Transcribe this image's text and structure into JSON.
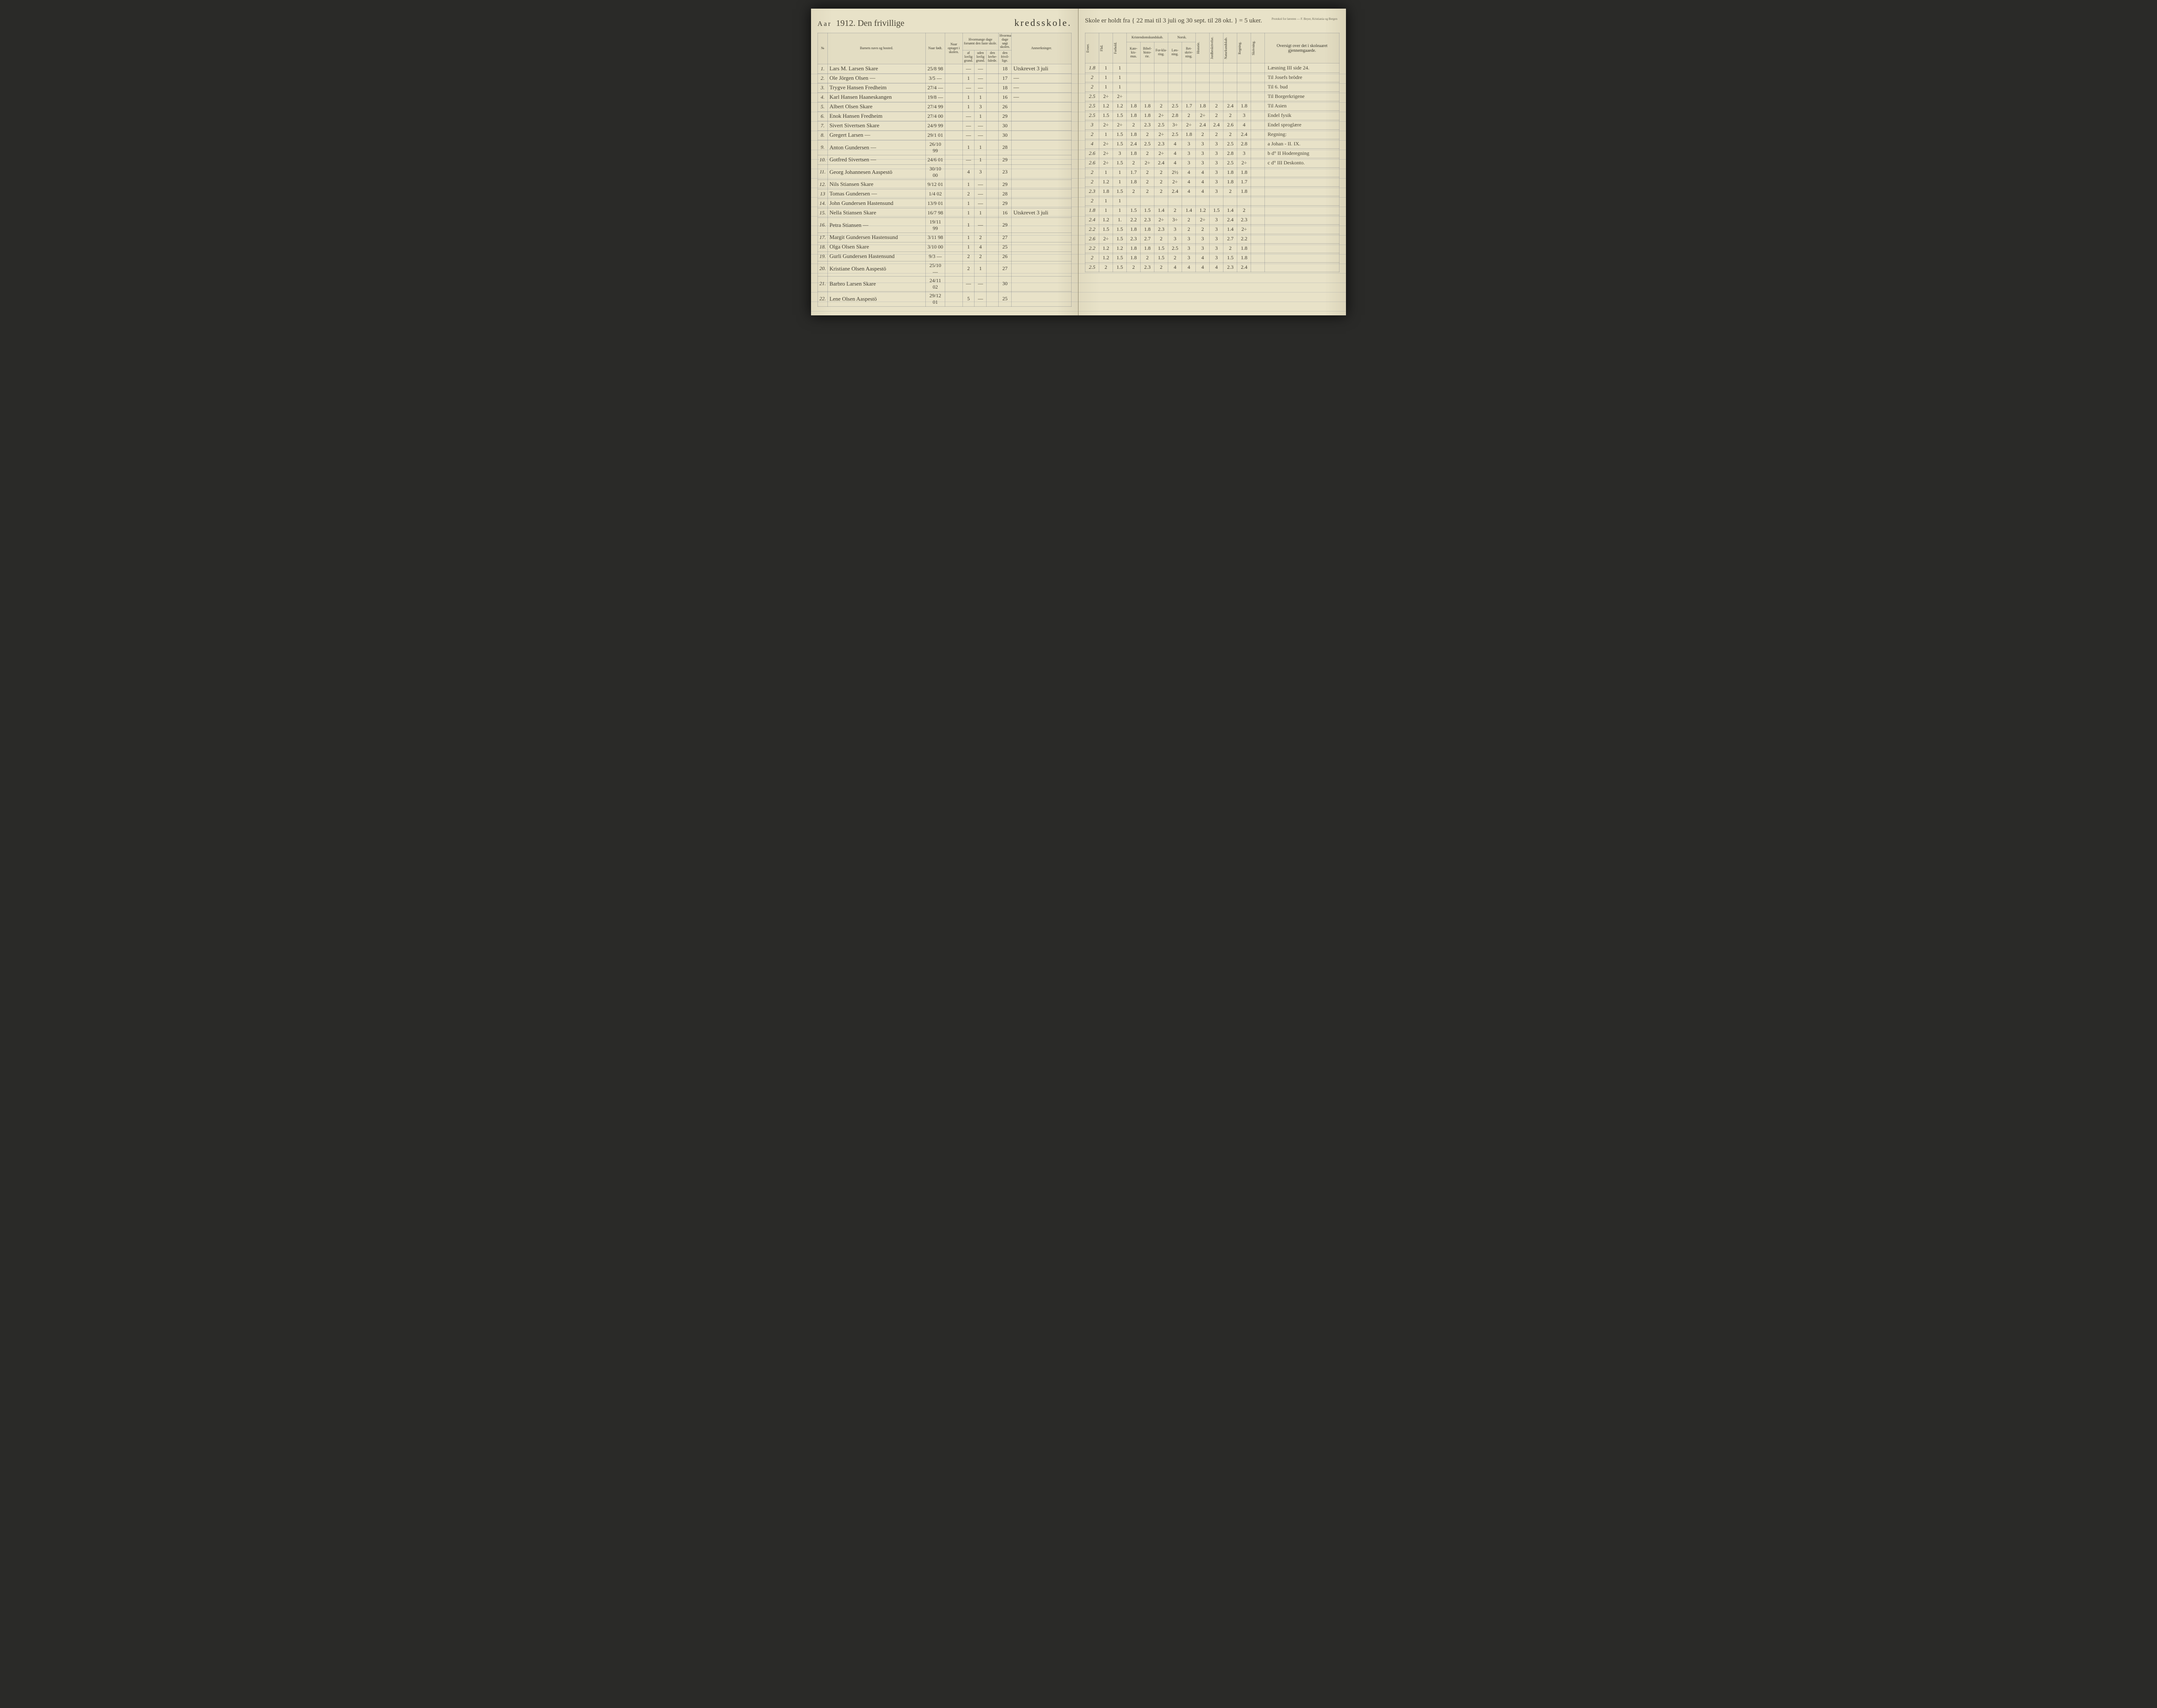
{
  "colors": {
    "paper": "#e8e2c8",
    "ink": "#4a4638",
    "rule": "#788296",
    "printed": "#3a382e"
  },
  "left": {
    "aar_label": "Aar",
    "year_hand": "1912. Den frivillige",
    "title_print": "kredsskole.",
    "headers": {
      "no": "№",
      "navn": "Barnets navn og bosted.",
      "fodt": "Naar født.",
      "optaget": "Naar optaget i skolen.",
      "forsomt_top": "Hvormange dage forsømt den faste skole.",
      "forsomt_a": "af lovlig grund.",
      "forsomt_b": "uden lovlig grund.",
      "forsomt_c": "den lovbe-falede.",
      "sogt_top": "Hvormange dage søgt skolen.",
      "sogt_a": "den frivil-lige.",
      "anm": "Anmerkninger."
    },
    "rows": [
      {
        "no": "1.",
        "name": "Lars M. Larsen Skare",
        "fodt": "25/8 98",
        "opt": "",
        "a": "—",
        "b": "—",
        "c": "",
        "d": "18",
        "anm": "Utskrevet 3 juli"
      },
      {
        "no": "2.",
        "name": "Ole Jörgen Olsen —",
        "fodt": "3/5 —",
        "opt": "",
        "a": "1",
        "b": "—",
        "c": "",
        "d": "17",
        "anm": "—"
      },
      {
        "no": "3.",
        "name": "Trygve Hansen Fredheim",
        "fodt": "27/4 —",
        "opt": "",
        "a": "—",
        "b": "—",
        "c": "",
        "d": "18",
        "anm": "—"
      },
      {
        "no": "4.",
        "name": "Karl Hansen Haaneskangen",
        "fodt": "19/8 —",
        "opt": "",
        "a": "1",
        "b": "1",
        "c": "",
        "d": "16",
        "anm": "—"
      },
      {
        "no": "5.",
        "name": "Albert Olsen Skare",
        "fodt": "27/4 99",
        "opt": "",
        "a": "1",
        "b": "3",
        "c": "",
        "d": "26",
        "anm": ""
      },
      {
        "no": "6.",
        "name": "Enok Hansen Fredheim",
        "fodt": "27/4 00",
        "opt": "",
        "a": "—",
        "b": "1",
        "c": "",
        "d": "29",
        "anm": ""
      },
      {
        "no": "7.",
        "name": "Sivert Sivertsen Skare",
        "fodt": "24/9 99",
        "opt": "",
        "a": "—",
        "b": "—",
        "c": "",
        "d": "30",
        "anm": ""
      },
      {
        "no": "8.",
        "name": "Gregert Larsen   —",
        "fodt": "29/1 01",
        "opt": "",
        "a": "—",
        "b": "—",
        "c": "",
        "d": "30",
        "anm": ""
      },
      {
        "no": "9.",
        "name": "Anton Gundersen  —",
        "fodt": "26/10 99",
        "opt": "",
        "a": "1",
        "b": "1",
        "c": "",
        "d": "28",
        "anm": ""
      },
      {
        "no": "10.",
        "name": "Gotfred Sivertsen —",
        "fodt": "24/6 01",
        "opt": "",
        "a": "—",
        "b": "1",
        "c": "",
        "d": "29",
        "anm": ""
      },
      {
        "no": "11.",
        "name": "Georg Johannesen Aaspestö",
        "fodt": "30/10 00",
        "opt": "",
        "a": "4",
        "b": "3",
        "c": "",
        "d": "23",
        "anm": ""
      },
      {
        "no": "12.",
        "name": "Nils Stiansen Skare",
        "fodt": "9/12 01",
        "opt": "",
        "a": "1",
        "b": "—",
        "c": "",
        "d": "29",
        "anm": ""
      },
      {
        "no": "13",
        "name": "Tomas Gundersen  —",
        "fodt": "1/4 02",
        "opt": "",
        "a": "2",
        "b": "—",
        "c": "",
        "d": "28",
        "anm": ""
      },
      {
        "no": "14.",
        "name": "John Gundersen Hastensund",
        "fodt": "13/9 01",
        "opt": "",
        "a": "1",
        "b": "—",
        "c": "",
        "d": "29",
        "anm": ""
      },
      {
        "no": "15.",
        "name": "Nella Stiansen Skare",
        "fodt": "16/7 98",
        "opt": "",
        "a": "1",
        "b": "1",
        "c": "",
        "d": "16",
        "anm": "Utskrevet 3 juli"
      },
      {
        "no": "16.",
        "name": "Petra Stiansen   —",
        "fodt": "19/11 99",
        "opt": "",
        "a": "1",
        "b": "—",
        "c": "",
        "d": "29",
        "anm": ""
      },
      {
        "no": "17.",
        "name": "Margit Gundersen Hastensund",
        "fodt": "3/11 98",
        "opt": "",
        "a": "1",
        "b": "2",
        "c": "",
        "d": "27",
        "anm": ""
      },
      {
        "no": "18.",
        "name": "Olga Olsen Skare",
        "fodt": "3/10 00",
        "opt": "",
        "a": "1",
        "b": "4",
        "c": "",
        "d": "25",
        "anm": ""
      },
      {
        "no": "19.",
        "name": "Gurli Gundersen Hastensund",
        "fodt": "9/3 —",
        "opt": "",
        "a": "2",
        "b": "2",
        "c": "",
        "d": "26",
        "anm": ""
      },
      {
        "no": "20.",
        "name": "Kristiane Olsen Aaspestö",
        "fodt": "25/10 —",
        "opt": "",
        "a": "2",
        "b": "1",
        "c": "",
        "d": "27",
        "anm": ""
      },
      {
        "no": "21.",
        "name": "Barbro Larsen Skare",
        "fodt": "24/11 02",
        "opt": "",
        "a": "—",
        "b": "—",
        "c": "",
        "d": "30",
        "anm": ""
      },
      {
        "no": "22.",
        "name": "Lene Olsen Aaspestö",
        "fodt": "29/12 01",
        "opt": "",
        "a": "5",
        "b": "—",
        "c": "",
        "d": "25",
        "anm": ""
      }
    ]
  },
  "right": {
    "hand_note": "Skole er holdt fra { 22 mai til 3 juli og 30 sept. til 28 okt. } = 5 uker.",
    "publisher": "Protokol for læreren — F. Beyer, Kristiania og Bergen",
    "headers": {
      "evner": "Evner.",
      "flid": "Flid.",
      "forhold": "Forhold.",
      "krist_top": "Kristendomskundskab.",
      "krist_a": "Kate-kis-mus.",
      "krist_b": "Bibel-histo-rie.",
      "krist_c": "For-kla-ring.",
      "norsk_top": "Norsk.",
      "norsk_a": "Læs-ning.",
      "norsk_b": "Ret-skriv-ning.",
      "historie": "Historie.",
      "jord": "Jordbeskrivelse.",
      "natur": "Naturkundskab.",
      "regning": "Regning.",
      "skrivning": "Skrivning.",
      "oversigt": "Oversigt over det i skoleaaret gjennemgaaede."
    },
    "rows": [
      {
        "g": [
          "1.8",
          "1",
          "1",
          "",
          "",
          "",
          "",
          "",
          "",
          "",
          "",
          "",
          ""
        ],
        "ov": "Læsning III side 24."
      },
      {
        "g": [
          "2",
          "1",
          "1",
          "",
          "",
          "",
          "",
          "",
          "",
          "",
          "",
          "",
          ""
        ],
        "ov": "Til Josefs brödre"
      },
      {
        "g": [
          "2",
          "1",
          "1",
          "",
          "",
          "",
          "",
          "",
          "",
          "",
          "",
          "",
          ""
        ],
        "ov": "Til 6. bud"
      },
      {
        "g": [
          "2.5",
          "2÷",
          "2÷",
          "",
          "",
          "",
          "",
          "",
          "",
          "",
          "",
          "",
          ""
        ],
        "ov": "Til Borgerkrigene"
      },
      {
        "g": [
          "2.5",
          "1.2",
          "1.2",
          "1.8",
          "1.8",
          "2",
          "2.5",
          "1.7",
          "1.8",
          "2",
          "2.4",
          "1.8",
          ""
        ],
        "ov": "Til Asien"
      },
      {
        "g": [
          "2.5",
          "1.5",
          "1.5",
          "1.8",
          "1.8",
          "2÷",
          "2.8",
          "2",
          "2÷",
          "2",
          "2",
          "3",
          ""
        ],
        "ov": "Endel fysik"
      },
      {
        "g": [
          "3",
          "2÷",
          "2÷",
          "2",
          "2.3",
          "2.5",
          "3÷",
          "2÷",
          "2.4",
          "2.4",
          "2.6",
          "4",
          ""
        ],
        "ov": "Endel sproglære"
      },
      {
        "g": [
          "2",
          "1",
          "1.5",
          "1.8",
          "2",
          "2÷",
          "2.5",
          "1.8",
          "2",
          "2",
          "2",
          "2.4",
          ""
        ],
        "ov": "Regning:"
      },
      {
        "g": [
          "4",
          "2÷",
          "1.5",
          "2.4",
          "2.5",
          "2.3",
          "4",
          "3",
          "3",
          "3",
          "2.5",
          "2.8",
          ""
        ],
        "ov": "a Johan - II.  IX."
      },
      {
        "g": [
          "2.6",
          "2÷",
          "3",
          "1.8",
          "2",
          "2÷",
          "4",
          "3",
          "3",
          "3",
          "2.8",
          "3",
          ""
        ],
        "ov": "b d° II Hoderegning"
      },
      {
        "g": [
          "2.6",
          "2÷",
          "1.5",
          "2",
          "2÷",
          "2.4",
          "4",
          "3",
          "3",
          "3",
          "2.5",
          "2÷",
          ""
        ],
        "ov": "c d° III Deskonto."
      },
      {
        "g": [
          "2",
          "1",
          "1",
          "1.7",
          "2",
          "2",
          "2½",
          "4",
          "4",
          "3",
          "1.8",
          "1.8",
          ""
        ],
        "ov": ""
      },
      {
        "g": [
          "2",
          "1.2",
          "1",
          "1.8",
          "2",
          "2",
          "2÷",
          "4",
          "4",
          "3",
          "1.8",
          "1.7",
          ""
        ],
        "ov": ""
      },
      {
        "g": [
          "2.3",
          "1.8",
          "1.5",
          "2",
          "2",
          "2",
          "2.4",
          "4",
          "4",
          "3",
          "2",
          "1.8",
          ""
        ],
        "ov": ""
      },
      {
        "g": [
          "2",
          "1",
          "1",
          "",
          "",
          "",
          "",
          "",
          "",
          "",
          "",
          "",
          ""
        ],
        "ov": ""
      },
      {
        "g": [
          "1.8",
          "1",
          "1",
          "1.5",
          "1.5",
          "1.4",
          "2",
          "1.4",
          "1.2",
          "1.5",
          "1.4",
          "2",
          ""
        ],
        "ov": ""
      },
      {
        "g": [
          "2.4",
          "1.2",
          "1.",
          "2.2",
          "2.3",
          "2÷",
          "3÷",
          "2",
          "2÷",
          "3",
          "2.4",
          "2.3",
          ""
        ],
        "ov": ""
      },
      {
        "g": [
          "2.2",
          "1.5",
          "1.5",
          "1.8",
          "1.8",
          "2.3",
          "3",
          "2",
          "2",
          "3",
          "1.4",
          "2÷",
          ""
        ],
        "ov": ""
      },
      {
        "g": [
          "2.6",
          "2÷",
          "1.5",
          "2.3",
          "2.7",
          "2",
          "3",
          "3",
          "3",
          "3",
          "2.7",
          "2.2",
          ""
        ],
        "ov": ""
      },
      {
        "g": [
          "2.2",
          "1.2",
          "1.2",
          "1.8",
          "1.8",
          "1.5",
          "2.5",
          "3",
          "3",
          "3",
          "2",
          "1.8",
          ""
        ],
        "ov": ""
      },
      {
        "g": [
          "2",
          "1.2",
          "1.5",
          "1.8",
          "2",
          "1.5",
          "2",
          "3",
          "4",
          "3",
          "1.5",
          "1.8",
          ""
        ],
        "ov": ""
      },
      {
        "g": [
          "2.5",
          "2",
          "1.5",
          "2",
          "2.3",
          "2",
          "4",
          "4",
          "4",
          "4",
          "2.3",
          "2.4",
          ""
        ],
        "ov": ""
      }
    ]
  }
}
